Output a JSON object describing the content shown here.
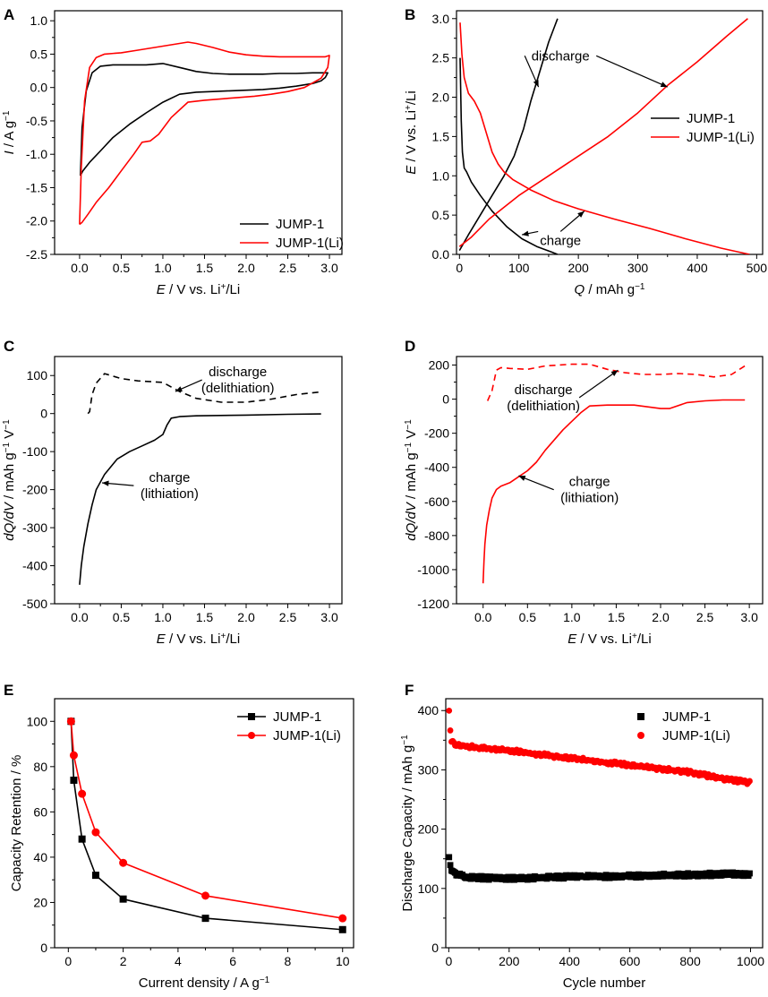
{
  "chart_data": [
    {
      "panel": "A",
      "type": "line",
      "xlabel_italic": "E",
      "xlabel_rest": " / V vs. Li",
      "xlabel_sup": "+",
      "xlabel_tail": "/Li",
      "ylabel_italic": "I",
      "ylabel_rest": " / A g",
      "ylabel_sup": "−1",
      "xlim": [
        -0.3,
        3.15
      ],
      "ylim": [
        -2.5,
        1.15
      ],
      "xticks": [
        0.0,
        0.5,
        1.0,
        1.5,
        2.0,
        2.5,
        3.0
      ],
      "xtick_labels": [
        "0.0",
        "0.5",
        "1.0",
        "1.5",
        "2.0",
        "2.5",
        "3.0"
      ],
      "yticks": [
        -2.5,
        -2.0,
        -1.5,
        -1.0,
        -0.5,
        0.0,
        0.5,
        1.0
      ],
      "ytick_labels": [
        "-2.5",
        "-2.0",
        "-1.5",
        "-1.0",
        "-0.5",
        "0.0",
        "0.5",
        "1.0"
      ],
      "legend_position": "bottom-right",
      "series": [
        {
          "name": "JUMP-1",
          "color": "#000000",
          "x": [
            0.01,
            0.03,
            0.08,
            0.15,
            0.25,
            0.4,
            0.6,
            0.8,
            1.0,
            1.2,
            1.4,
            1.6,
            1.8,
            2.0,
            2.2,
            2.4,
            2.6,
            2.8,
            2.98,
            2.95,
            2.9,
            2.8,
            2.6,
            2.4,
            2.2,
            2.0,
            1.8,
            1.6,
            1.4,
            1.2,
            1.0,
            0.8,
            0.6,
            0.4,
            0.25,
            0.12,
            0.04,
            0.01
          ],
          "y": [
            -1.32,
            -0.6,
            -0.05,
            0.22,
            0.32,
            0.34,
            0.34,
            0.34,
            0.36,
            0.3,
            0.24,
            0.21,
            0.2,
            0.2,
            0.2,
            0.21,
            0.21,
            0.22,
            0.22,
            0.15,
            0.1,
            0.06,
            0.02,
            -0.01,
            -0.03,
            -0.04,
            -0.05,
            -0.06,
            -0.07,
            -0.1,
            -0.22,
            -0.38,
            -0.55,
            -0.75,
            -0.95,
            -1.12,
            -1.25,
            -1.32
          ]
        },
        {
          "name": "JUMP-1(Li)",
          "color": "#ff0000",
          "x": [
            0.0,
            0.02,
            0.06,
            0.12,
            0.2,
            0.3,
            0.5,
            0.7,
            0.9,
            1.1,
            1.3,
            1.4,
            1.6,
            1.8,
            2.0,
            2.2,
            2.4,
            2.6,
            2.8,
            2.95,
            3.0,
            2.98,
            2.9,
            2.7,
            2.5,
            2.3,
            2.1,
            1.9,
            1.7,
            1.5,
            1.3,
            1.1,
            0.95,
            0.85,
            0.75,
            0.65,
            0.5,
            0.35,
            0.2,
            0.1,
            0.03,
            0.0
          ],
          "y": [
            -2.05,
            -1.2,
            -0.2,
            0.3,
            0.45,
            0.5,
            0.52,
            0.56,
            0.6,
            0.64,
            0.68,
            0.66,
            0.6,
            0.53,
            0.49,
            0.47,
            0.46,
            0.46,
            0.46,
            0.46,
            0.48,
            0.3,
            0.14,
            0.0,
            -0.06,
            -0.1,
            -0.13,
            -0.15,
            -0.17,
            -0.19,
            -0.22,
            -0.45,
            -0.7,
            -0.8,
            -0.82,
            -1.0,
            -1.25,
            -1.5,
            -1.72,
            -1.9,
            -2.02,
            -2.05
          ]
        }
      ]
    },
    {
      "panel": "B",
      "type": "line",
      "xlabel_italic": "Q",
      "xlabel_rest": " / mAh g",
      "xlabel_sup": "−1",
      "ylabel_italic": "E",
      "ylabel_rest": " / V vs. Li",
      "ylabel_sup": "+",
      "ylabel_tail": "/Li",
      "xlim": [
        -5,
        510
      ],
      "ylim": [
        0,
        3.1
      ],
      "xticks": [
        0,
        100,
        200,
        300,
        400,
        500
      ],
      "xtick_labels": [
        "0",
        "100",
        "200",
        "300",
        "400",
        "500"
      ],
      "yticks": [
        0.0,
        0.5,
        1.0,
        1.5,
        2.0,
        2.5,
        3.0
      ],
      "ytick_labels": [
        "0.0",
        "0.5",
        "1.0",
        "1.5",
        "2.0",
        "2.5",
        "3.0"
      ],
      "legend_position": "right",
      "annotations": [
        {
          "text": "discharge",
          "x": 170,
          "y": 2.47,
          "tip": [
            133,
            2.13
          ],
          "tip2": [
            350,
            2.13
          ]
        },
        {
          "text": "charge",
          "x": 170,
          "y": 0.12,
          "tip": [
            105,
            0.25
          ],
          "tip2": [
            210,
            0.55
          ]
        }
      ],
      "series": [
        {
          "name": "JUMP-1 (charge)",
          "legend": "JUMP-1",
          "color": "#000000",
          "x": [
            1,
            3,
            5,
            8,
            12,
            20,
            35,
            55,
            80,
            105,
            130,
            155,
            165
          ],
          "y": [
            2.5,
            1.7,
            1.3,
            1.1,
            1.05,
            0.92,
            0.75,
            0.55,
            0.35,
            0.2,
            0.1,
            0.03,
            0.0
          ]
        },
        {
          "name": "JUMP-1 (discharge)",
          "color": "#000000",
          "x": [
            0,
            15,
            35,
            55,
            75,
            92,
            108,
            120,
            130,
            140,
            150,
            160,
            165
          ],
          "y": [
            0.05,
            0.25,
            0.5,
            0.75,
            1.0,
            1.25,
            1.6,
            1.95,
            2.2,
            2.45,
            2.7,
            2.9,
            3.0
          ]
        },
        {
          "name": "JUMP-1(Li) (charge)",
          "legend": "JUMP-1(Li)",
          "color": "#ff0000",
          "x": [
            1,
            4,
            8,
            15,
            25,
            35,
            45,
            55,
            65,
            75,
            90,
            120,
            160,
            200,
            260,
            320,
            380,
            440,
            470,
            488
          ],
          "y": [
            2.95,
            2.55,
            2.25,
            2.05,
            1.95,
            1.8,
            1.55,
            1.3,
            1.15,
            1.05,
            0.95,
            0.82,
            0.68,
            0.58,
            0.45,
            0.33,
            0.2,
            0.08,
            0.03,
            0.0
          ]
        },
        {
          "name": "JUMP-1(Li) (discharge)",
          "color": "#ff0000",
          "x": [
            0,
            20,
            50,
            100,
            150,
            200,
            250,
            300,
            350,
            400,
            450,
            485
          ],
          "y": [
            0.1,
            0.22,
            0.45,
            0.75,
            1.0,
            1.25,
            1.5,
            1.8,
            2.15,
            2.45,
            2.78,
            3.0
          ]
        }
      ]
    },
    {
      "panel": "C",
      "type": "line",
      "xlabel_italic": "E",
      "xlabel_rest": " / V vs. Li",
      "xlabel_sup": "+",
      "xlabel_tail": "/Li",
      "ylabel_italic": "dQ/dV",
      "ylabel_rest": " / mAh g",
      "ylabel_sup": "−1",
      "ylabel_tail": " V",
      "ylabel_sup2": "−1",
      "xlim": [
        -0.3,
        3.15
      ],
      "ylim": [
        -500,
        150
      ],
      "xticks": [
        0.0,
        0.5,
        1.0,
        1.5,
        2.0,
        2.5,
        3.0
      ],
      "xtick_labels": [
        "0.0",
        "0.5",
        "1.0",
        "1.5",
        "2.0",
        "2.5",
        "3.0"
      ],
      "yticks": [
        -500,
        -400,
        -300,
        -200,
        -100,
        0,
        100
      ],
      "ytick_labels": [
        "-500",
        "-400",
        "-300",
        "-200",
        "-100",
        "0",
        "100"
      ],
      "annotations": [
        {
          "text": "discharge",
          "text2": "(delithiation)",
          "x": 1.9,
          "y": 98,
          "tip": [
            1.15,
            58
          ]
        },
        {
          "text": "charge",
          "text2": "(lithiation)",
          "x": 1.08,
          "y": -180,
          "tip": [
            0.27,
            -182
          ]
        }
      ],
      "series": [
        {
          "name": "discharge",
          "color": "#000000",
          "dash": true,
          "x": [
            0.1,
            0.12,
            0.15,
            0.2,
            0.3,
            0.5,
            0.7,
            1.0,
            1.2,
            1.4,
            1.7,
            2.0,
            2.3,
            2.6,
            2.9
          ],
          "y": [
            0,
            5,
            50,
            80,
            105,
            92,
            86,
            82,
            58,
            40,
            30,
            30,
            38,
            50,
            57
          ]
        },
        {
          "name": "charge",
          "color": "#000000",
          "dash": false,
          "x": [
            0.0,
            0.02,
            0.05,
            0.1,
            0.15,
            0.2,
            0.3,
            0.45,
            0.6,
            0.75,
            0.9,
            1.0,
            1.05,
            1.1,
            1.2,
            1.4,
            2.0,
            2.5,
            2.9
          ],
          "y": [
            -450,
            -400,
            -350,
            -290,
            -240,
            -200,
            -160,
            -120,
            -100,
            -85,
            -70,
            -55,
            -30,
            -12,
            -8,
            -6,
            -4,
            -2,
            -1
          ]
        }
      ]
    },
    {
      "panel": "D",
      "type": "line",
      "xlabel_italic": "E",
      "xlabel_rest": " / V vs. Li",
      "xlabel_sup": "+",
      "xlabel_tail": "/Li",
      "ylabel_italic": "dQ/dV",
      "ylabel_rest": " / mAh g",
      "ylabel_sup": "−1",
      "ylabel_tail": " V",
      "ylabel_sup2": "−1",
      "xlim": [
        -0.3,
        3.15
      ],
      "ylim": [
        -1200,
        250
      ],
      "xticks": [
        0.0,
        0.5,
        1.0,
        1.5,
        2.0,
        2.5,
        3.0
      ],
      "xtick_labels": [
        "0.0",
        "0.5",
        "1.0",
        "1.5",
        "2.0",
        "2.5",
        "3.0"
      ],
      "yticks": [
        -1200,
        -1000,
        -800,
        -600,
        -400,
        -200,
        0,
        200
      ],
      "ytick_labels": [
        "-1200",
        "-1000",
        "-800",
        "-600",
        "-400",
        "-200",
        "0",
        "200"
      ],
      "annotations": [
        {
          "text": "discharge",
          "text2": "(delithiation)",
          "x": 0.68,
          "y": 30,
          "tip": [
            1.52,
            170
          ]
        },
        {
          "text": "charge",
          "text2": "(lithiation)",
          "x": 1.2,
          "y": -510,
          "tip": [
            0.4,
            -450
          ]
        }
      ],
      "series": [
        {
          "name": "discharge",
          "color": "#ff0000",
          "dash": true,
          "x": [
            0.05,
            0.1,
            0.15,
            0.2,
            0.3,
            0.5,
            0.7,
            1.0,
            1.2,
            1.4,
            1.6,
            1.8,
            2.0,
            2.2,
            2.4,
            2.6,
            2.8,
            2.95
          ],
          "y": [
            -10,
            50,
            170,
            185,
            180,
            175,
            195,
            205,
            205,
            175,
            155,
            145,
            145,
            150,
            145,
            130,
            145,
            195
          ]
        },
        {
          "name": "charge",
          "color": "#ff0000",
          "dash": false,
          "x": [
            0.0,
            0.01,
            0.02,
            0.04,
            0.07,
            0.1,
            0.15,
            0.2,
            0.3,
            0.4,
            0.5,
            0.6,
            0.7,
            0.8,
            0.9,
            1.0,
            1.1,
            1.2,
            1.4,
            1.7,
            2.0,
            2.1,
            2.3,
            2.5,
            2.7,
            2.95
          ],
          "y": [
            -1080,
            -950,
            -850,
            -740,
            -650,
            -580,
            -530,
            -510,
            -490,
            -455,
            -420,
            -370,
            -300,
            -240,
            -180,
            -130,
            -80,
            -40,
            -35,
            -35,
            -55,
            -55,
            -20,
            -10,
            -5,
            -5
          ]
        }
      ]
    },
    {
      "panel": "E",
      "type": "line",
      "xlabel": "Current density / A g",
      "xlabel_sup": "−1",
      "ylabel": "Capacity Retention / %",
      "xlim": [
        -0.5,
        10.4
      ],
      "ylim": [
        0,
        110
      ],
      "xticks": [
        0,
        2,
        4,
        6,
        8,
        10
      ],
      "xtick_labels": [
        "0",
        "2",
        "4",
        "6",
        "8",
        "10"
      ],
      "yticks": [
        0,
        20,
        40,
        60,
        80,
        100
      ],
      "ytick_labels": [
        "0",
        "20",
        "40",
        "60",
        "80",
        "100"
      ],
      "legend_position": "top-right",
      "series": [
        {
          "name": "JUMP-1",
          "color": "#000000",
          "marker": "square",
          "x": [
            0.1,
            0.2,
            0.5,
            1,
            2,
            5,
            10
          ],
          "y": [
            100,
            74,
            48,
            32,
            21.5,
            13,
            8
          ]
        },
        {
          "name": "JUMP-1(Li)",
          "color": "#ff0000",
          "marker": "circle",
          "x": [
            0.1,
            0.2,
            0.5,
            1,
            2,
            5,
            10
          ],
          "y": [
            100,
            85,
            68,
            51,
            37.5,
            23,
            13
          ]
        }
      ]
    },
    {
      "panel": "F",
      "type": "scatter",
      "xlabel": "Cycle number",
      "ylabel": "Discharge Capacity / mAh g",
      "ylabel_sup": "−1",
      "xlim": [
        -10,
        1040
      ],
      "ylim": [
        0,
        420
      ],
      "xticks": [
        0,
        200,
        400,
        600,
        800,
        1000
      ],
      "xtick_labels": [
        "0",
        "200",
        "400",
        "600",
        "800",
        "1000"
      ],
      "yticks": [
        0,
        100,
        200,
        300,
        400
      ],
      "ytick_labels": [
        "0",
        "100",
        "200",
        "300",
        "400"
      ],
      "legend_position": "top-right",
      "series": [
        {
          "name": "JUMP-1",
          "color": "#000000",
          "marker": "square",
          "anchors_x": [
            1,
            3,
            8,
            20,
            50,
            100,
            200,
            300,
            400,
            500,
            600,
            700,
            800,
            900,
            1000
          ],
          "anchors_y": [
            150,
            142,
            132,
            125,
            120,
            118,
            117,
            118,
            120,
            120,
            121,
            122,
            123,
            124,
            124
          ]
        },
        {
          "name": "JUMP-1(Li)",
          "color": "#ff0000",
          "marker": "circle",
          "anchors_x": [
            1,
            3,
            8,
            20,
            50,
            100,
            200,
            300,
            400,
            500,
            600,
            700,
            800,
            900,
            1000
          ],
          "anchors_y": [
            398,
            375,
            350,
            342,
            341,
            337,
            333,
            326,
            320,
            314,
            308,
            302,
            296,
            286,
            278
          ]
        }
      ]
    }
  ]
}
